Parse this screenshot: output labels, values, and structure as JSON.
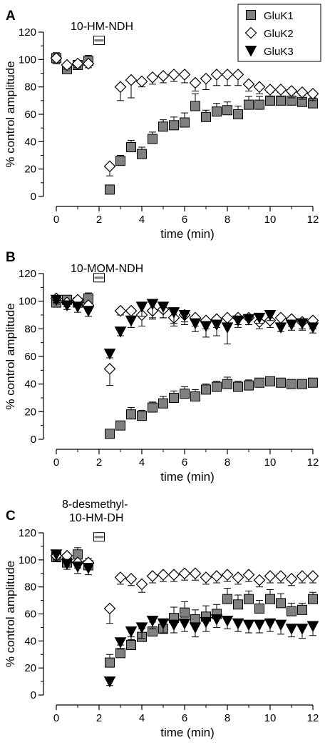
{
  "legend": {
    "items": [
      {
        "name": "GluK1",
        "marker": "square"
      },
      {
        "name": "GluK2",
        "marker": "diamond"
      },
      {
        "name": "GluK3",
        "marker": "triangle"
      }
    ]
  },
  "colors": {
    "gluk1_fill": "#808080",
    "gluk2_fill": "#ffffff",
    "gluk3_fill": "#000000",
    "stroke": "#000000"
  },
  "chart_data": [
    {
      "type": "scatter",
      "panel": "A",
      "title": "10-HM-NDH",
      "xlabel": "time (min)",
      "ylabel": "% control amplitude",
      "xlim": [
        0,
        12
      ],
      "ylim": [
        0,
        120
      ],
      "xticks": [
        0,
        2,
        4,
        6,
        8,
        10,
        12
      ],
      "yticks": [
        0,
        20,
        40,
        60,
        80,
        100,
        120
      ],
      "application_bar": {
        "x": 2,
        "y": 114
      },
      "series": [
        {
          "name": "GluK1",
          "marker": "square",
          "x": [
            0,
            0.5,
            1,
            1.5,
            2.5,
            3,
            3.5,
            4,
            4.5,
            5,
            5.5,
            6,
            6.5,
            7,
            7.5,
            8,
            8.5,
            9,
            9.5,
            10,
            10.5,
            11,
            11.5,
            12
          ],
          "y": [
            101,
            93,
            96,
            99,
            5,
            26,
            36,
            31,
            42,
            51,
            52,
            54,
            66,
            58,
            62,
            63,
            60,
            67,
            67,
            70,
            70,
            70,
            69,
            68
          ],
          "err": [
            4,
            3,
            3,
            4,
            2,
            4,
            5,
            5,
            5,
            5,
            6,
            7,
            9,
            5,
            6,
            6,
            6,
            6,
            6,
            6,
            6,
            5,
            5,
            4
          ]
        },
        {
          "name": "GluK2",
          "marker": "diamond",
          "x": [
            0,
            0.5,
            1,
            1.5,
            2.5,
            3,
            3.5,
            4,
            4.5,
            5,
            5.5,
            6,
            6.5,
            7,
            7.5,
            8,
            8.5,
            9,
            9.5,
            10,
            10.5,
            11,
            11.5,
            12
          ],
          "y": [
            101,
            96,
            97,
            97,
            22,
            80,
            85,
            84,
            87,
            88,
            89,
            89,
            83,
            86,
            89,
            89,
            89,
            82,
            80,
            78,
            78,
            77,
            76,
            75
          ],
          "err": [
            4,
            3,
            3,
            3,
            7,
            10,
            13,
            4,
            5,
            5,
            5,
            6,
            6,
            8,
            8,
            8,
            8,
            5,
            5,
            5,
            5,
            5,
            5,
            5
          ]
        }
      ]
    },
    {
      "type": "scatter",
      "panel": "B",
      "title": "10-MOM-NDH",
      "xlabel": "time (min)",
      "ylabel": "% control amplitude",
      "xlim": [
        0,
        12
      ],
      "ylim": [
        0,
        120
      ],
      "xticks": [
        0,
        2,
        4,
        6,
        8,
        10,
        12
      ],
      "yticks": [
        0,
        20,
        40,
        60,
        80,
        100,
        120
      ],
      "application_bar": {
        "x": 2,
        "y": 117
      },
      "series": [
        {
          "name": "GluK1",
          "marker": "square",
          "x": [
            0,
            0.5,
            1,
            1.5,
            2.5,
            3,
            3.5,
            4,
            4.5,
            5,
            5.5,
            6,
            6.5,
            7,
            7.5,
            8,
            8.5,
            9,
            9.5,
            10,
            10.5,
            11,
            11.5,
            12
          ],
          "y": [
            99,
            101,
            99,
            102,
            4,
            10,
            18,
            17,
            23,
            26,
            30,
            33,
            31,
            36,
            38,
            40,
            38,
            39,
            41,
            42,
            41,
            40,
            40,
            41
          ],
          "err": [
            3,
            3,
            3,
            4,
            2,
            3,
            5,
            4,
            4,
            5,
            5,
            5,
            5,
            4,
            4,
            5,
            4,
            4,
            3,
            3,
            3,
            3,
            3,
            3
          ]
        },
        {
          "name": "GluK2",
          "marker": "diamond",
          "x": [
            0,
            0.5,
            1,
            1.5,
            2.5,
            3,
            3.5,
            4,
            4.5,
            5,
            5.5,
            6,
            6.5,
            7,
            7.5,
            8,
            8.5,
            9,
            9.5,
            10,
            10.5,
            11,
            11.5,
            12
          ],
          "y": [
            102,
            99,
            101,
            97,
            51,
            93,
            93,
            90,
            93,
            94,
            88,
            90,
            88,
            86,
            87,
            88,
            88,
            88,
            85,
            86,
            88,
            87,
            85,
            86
          ],
          "err": [
            3,
            3,
            3,
            4,
            12,
            3,
            5,
            8,
            6,
            6,
            6,
            5,
            6,
            6,
            6,
            6,
            5,
            5,
            5,
            5,
            5,
            5,
            6,
            6
          ]
        },
        {
          "name": "GluK3",
          "marker": "triangle",
          "x": [
            0,
            0.5,
            1,
            1.5,
            2.5,
            3,
            3.5,
            4,
            4.5,
            5,
            5.5,
            6,
            6.5,
            7,
            7.5,
            8,
            8.5,
            9,
            9.5,
            10,
            10.5,
            11,
            11.5,
            12
          ],
          "y": [
            101,
            97,
            96,
            93,
            62,
            78,
            86,
            96,
            98,
            96,
            92,
            90,
            84,
            82,
            83,
            81,
            86,
            87,
            88,
            90,
            81,
            83,
            84,
            81
          ],
          "err": [
            3,
            3,
            4,
            4,
            3,
            3,
            5,
            7,
            10,
            8,
            8,
            7,
            6,
            8,
            8,
            12,
            5,
            4,
            4,
            4,
            3,
            4,
            4,
            4
          ]
        }
      ]
    },
    {
      "type": "scatter",
      "panel": "C",
      "title_lines": [
        "8-desmethyl-",
        "10-HM-DH"
      ],
      "xlabel": "time (min)",
      "ylabel": "% control amplitude",
      "xlim": [
        0,
        12
      ],
      "ylim": [
        0,
        120
      ],
      "xticks": [
        0,
        2,
        4,
        6,
        8,
        10,
        12
      ],
      "yticks": [
        0,
        20,
        40,
        60,
        80,
        100,
        120
      ],
      "application_bar": {
        "x": 2,
        "y": 117
      },
      "series": [
        {
          "name": "GluK1",
          "marker": "square",
          "x": [
            0,
            0.5,
            1,
            1.5,
            2.5,
            3,
            3.5,
            4,
            4.5,
            5,
            5.5,
            6,
            6.5,
            7,
            7.5,
            8,
            8.5,
            9,
            9.5,
            10,
            10.5,
            11,
            11.5,
            12
          ],
          "y": [
            102,
            98,
            104,
            96,
            24,
            31,
            37,
            43,
            47,
            49,
            57,
            61,
            56,
            58,
            60,
            71,
            67,
            71,
            64,
            71,
            68,
            62,
            63,
            71
          ],
          "err": [
            4,
            4,
            5,
            5,
            6,
            6,
            6,
            6,
            7,
            7,
            8,
            8,
            7,
            8,
            7,
            8,
            7,
            6,
            6,
            7,
            7,
            6,
            5,
            5
          ]
        },
        {
          "name": "GluK2",
          "marker": "diamond",
          "x": [
            0,
            0.5,
            1,
            1.5,
            2.5,
            3,
            3.5,
            4,
            4.5,
            5,
            5.5,
            6,
            6.5,
            7,
            7.5,
            8,
            8.5,
            9,
            9.5,
            10,
            10.5,
            11,
            11.5,
            12
          ],
          "y": [
            103,
            103,
            98,
            98,
            64,
            87,
            86,
            82,
            88,
            89,
            89,
            90,
            90,
            87,
            88,
            89,
            87,
            89,
            85,
            88,
            88,
            86,
            88,
            88
          ],
          "err": [
            4,
            3,
            4,
            4,
            11,
            5,
            5,
            6,
            5,
            5,
            5,
            5,
            5,
            5,
            5,
            5,
            5,
            5,
            5,
            5,
            5,
            5,
            5,
            5
          ]
        },
        {
          "name": "GluK3",
          "marker": "triangle",
          "x": [
            0,
            0.5,
            1,
            1.5,
            2.5,
            3,
            3.5,
            4,
            4.5,
            5,
            5.5,
            6,
            6.5,
            7,
            7.5,
            8,
            8.5,
            9,
            9.5,
            10,
            10.5,
            11,
            11.5,
            12
          ],
          "y": [
            104,
            97,
            95,
            94,
            10,
            39,
            47,
            50,
            55,
            53,
            52,
            53,
            50,
            54,
            56,
            55,
            53,
            52,
            52,
            53,
            52,
            49,
            49,
            51
          ],
          "err": [
            4,
            4,
            5,
            5,
            3,
            5,
            6,
            8,
            6,
            7,
            6,
            6,
            7,
            7,
            6,
            6,
            6,
            6,
            6,
            6,
            7,
            6,
            7,
            7
          ]
        }
      ]
    }
  ]
}
